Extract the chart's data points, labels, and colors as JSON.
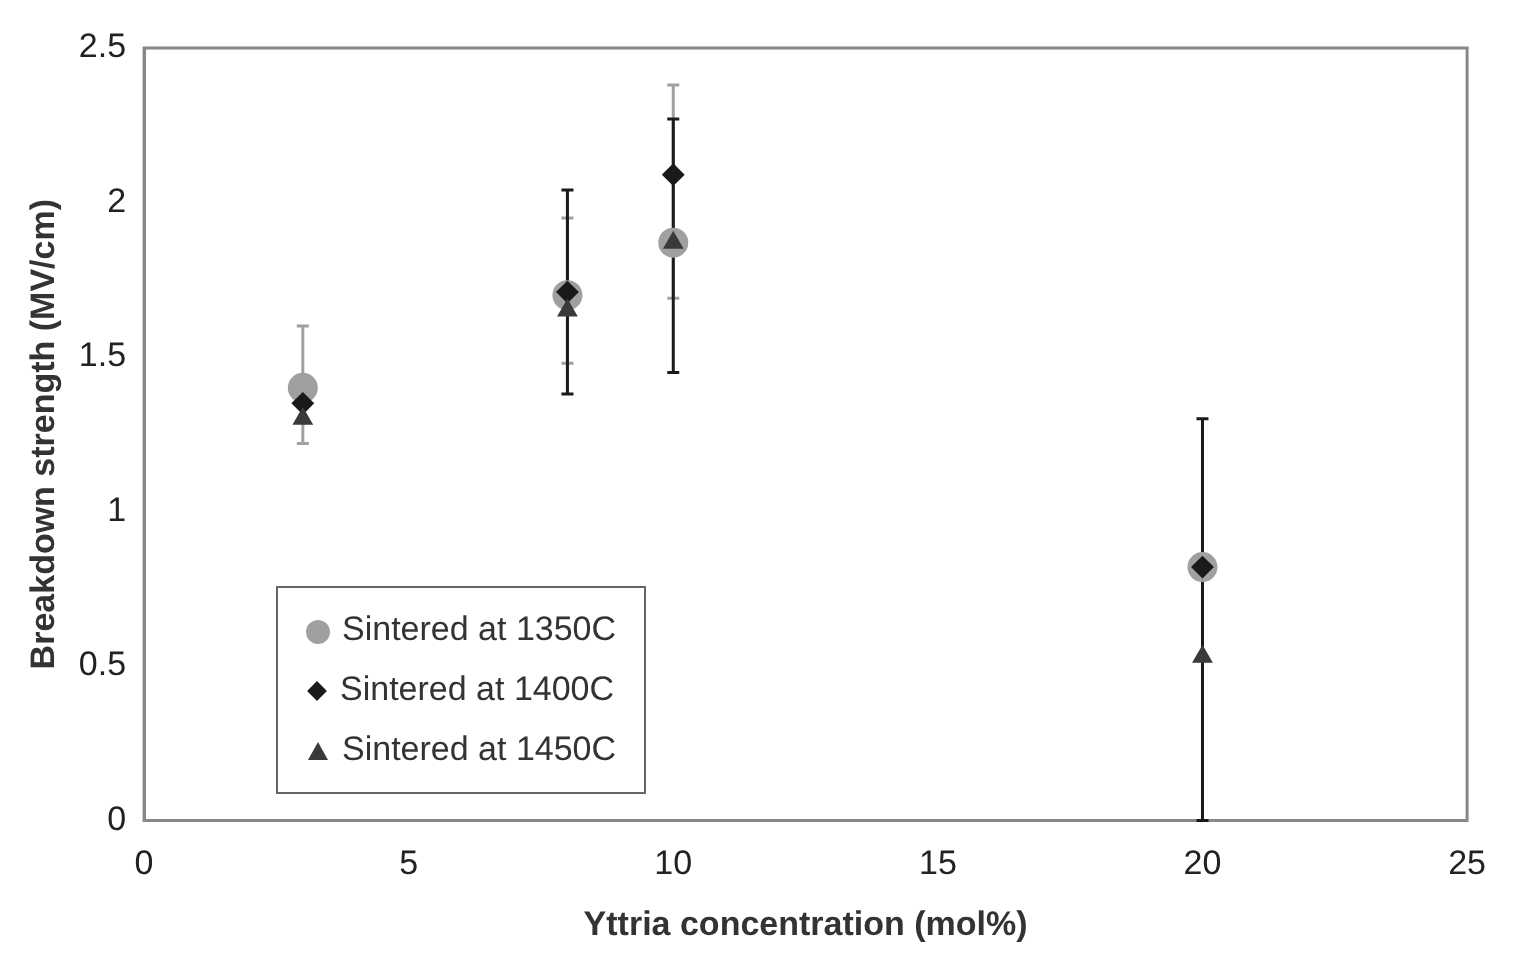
{
  "chart_data": {
    "type": "scatter",
    "xlabel": "Yttria concentration (mol%)",
    "ylabel": "Breakdown strength (MV/cm)",
    "xlim": [
      0,
      25
    ],
    "xticks": [
      0,
      5,
      10,
      15,
      20,
      25
    ],
    "ylim": [
      0,
      2.5
    ],
    "yticks": [
      0,
      0.5,
      1,
      1.5,
      2,
      2.5
    ],
    "grid": false,
    "legend": "bottom left",
    "series": [
      {
        "name": "Sintered at 1350C",
        "color": "#a0a0a0",
        "marker": "circle",
        "x": [
          3,
          8,
          10,
          20
        ],
        "values": [
          1.4,
          1.7,
          1.87,
          0.82
        ],
        "errors": [
          [
            1.22,
            1.6
          ],
          [
            1.48,
            1.95
          ],
          [
            1.69,
            2.38
          ],
          null
        ]
      },
      {
        "name": "Sintered at 1400C",
        "color": "#1a1a1a",
        "marker": "diamond",
        "x": [
          3,
          8,
          10,
          20
        ],
        "values": [
          1.35,
          1.71,
          2.09,
          0.82
        ],
        "errors": [
          null,
          [
            1.38,
            2.04
          ],
          [
            1.45,
            2.27
          ],
          [
            0,
            1.3
          ]
        ]
      },
      {
        "name": "Sintered at 1450C",
        "color": "#3a3a3a",
        "marker": "triangle",
        "x": [
          3,
          8,
          10,
          20
        ],
        "values": [
          1.3,
          1.65,
          1.87,
          0.53
        ]
      }
    ]
  }
}
